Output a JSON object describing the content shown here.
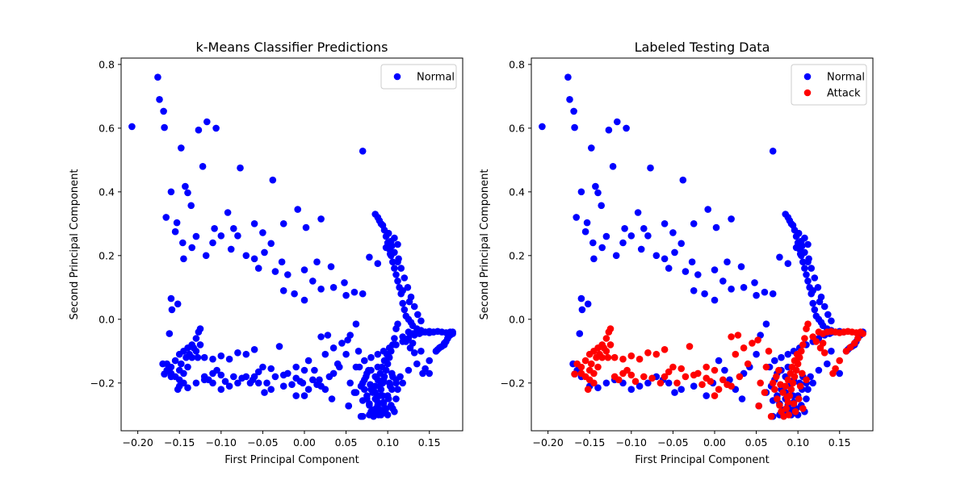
{
  "chart_data": [
    {
      "type": "scatter",
      "title": "k-Means Classifier Predictions",
      "xlabel": "First Principal Component",
      "ylabel": "Second Principal Component",
      "xlim": [
        -0.22,
        0.19
      ],
      "ylim": [
        -0.35,
        0.82
      ],
      "xticks": [
        "−0.20",
        "−0.15",
        "−0.10",
        "−0.05",
        "0.00",
        "0.05",
        "0.10",
        "0.15"
      ],
      "yticks": [
        "−0.2",
        "0.0",
        "0.2",
        "0.4",
        "0.6",
        "0.8"
      ],
      "legend_position": "top-right",
      "series": [
        {
          "name": "Normal",
          "color": "#0000ff",
          "x": [],
          "y": []
        }
      ]
    },
    {
      "type": "scatter",
      "title": "Labeled Testing Data",
      "xlabel": "First Principal Component",
      "ylabel": "Second Principal Component",
      "xlim": [
        -0.22,
        0.19
      ],
      "ylim": [
        -0.35,
        0.82
      ],
      "xticks": [
        "−0.20",
        "−0.15",
        "−0.10",
        "−0.05",
        "0.00",
        "0.05",
        "0.10",
        "0.15"
      ],
      "yticks": [
        "−0.2",
        "0.0",
        "0.2",
        "0.4",
        "0.6",
        "0.8"
      ],
      "legend_position": "top-right",
      "series": [
        {
          "name": "Normal",
          "color": "#0000ff",
          "x": [],
          "y": []
        },
        {
          "name": "Attack",
          "color": "#ff0000",
          "x": [],
          "y": []
        }
      ]
    }
  ],
  "normal_points": [
    [
      -0.207,
      0.605
    ],
    [
      -0.176,
      0.76
    ],
    [
      -0.174,
      0.69
    ],
    [
      -0.169,
      0.653
    ],
    [
      -0.168,
      0.602
    ],
    [
      -0.127,
      0.594
    ],
    [
      -0.117,
      0.62
    ],
    [
      -0.106,
      0.6
    ],
    [
      -0.148,
      0.538
    ],
    [
      -0.122,
      0.48
    ],
    [
      -0.077,
      0.475
    ],
    [
      0.07,
      0.528
    ],
    [
      -0.038,
      0.437
    ],
    [
      -0.143,
      0.417
    ],
    [
      -0.14,
      0.397
    ],
    [
      -0.16,
      0.4
    ],
    [
      -0.136,
      0.357
    ],
    [
      -0.092,
      0.335
    ],
    [
      -0.008,
      0.345
    ],
    [
      0.02,
      0.315
    ],
    [
      0.085,
      0.33
    ],
    [
      -0.166,
      0.32
    ],
    [
      -0.153,
      0.303
    ],
    [
      -0.06,
      0.3
    ],
    [
      -0.025,
      0.3
    ],
    [
      0.002,
      0.288
    ],
    [
      -0.085,
      0.285
    ],
    [
      -0.108,
      0.285
    ],
    [
      -0.155,
      0.275
    ],
    [
      -0.13,
      0.26
    ],
    [
      -0.08,
      0.262
    ],
    [
      -0.1,
      0.262
    ],
    [
      -0.146,
      0.24
    ],
    [
      -0.135,
      0.225
    ],
    [
      -0.11,
      0.24
    ],
    [
      -0.05,
      0.272
    ],
    [
      -0.04,
      0.238
    ],
    [
      -0.088,
      0.22
    ],
    [
      -0.145,
      0.19
    ],
    [
      -0.118,
      0.2
    ],
    [
      -0.07,
      0.2
    ],
    [
      -0.06,
      0.19
    ],
    [
      -0.027,
      0.18
    ],
    [
      0.015,
      0.18
    ],
    [
      0.078,
      0.195
    ],
    [
      0.088,
      0.175
    ],
    [
      -0.048,
      0.21
    ],
    [
      -0.16,
      0.065
    ],
    [
      -0.159,
      0.03
    ],
    [
      -0.152,
      0.048
    ],
    [
      -0.162,
      -0.045
    ],
    [
      -0.168,
      -0.172
    ],
    [
      0.032,
      0.165
    ],
    [
      0.048,
      0.115
    ],
    [
      0.06,
      0.085
    ],
    [
      0.07,
      0.08
    ],
    [
      0.05,
      0.075
    ],
    [
      0.035,
      0.1
    ],
    [
      0.02,
      0.095
    ],
    [
      0.01,
      0.12
    ],
    [
      0.0,
      0.155
    ],
    [
      -0.02,
      0.14
    ],
    [
      -0.035,
      0.15
    ],
    [
      -0.055,
      0.16
    ],
    [
      -0.025,
      0.09
    ],
    [
      -0.012,
      0.08
    ],
    [
      0.0,
      0.06
    ],
    [
      0.062,
      -0.015
    ],
    [
      0.055,
      -0.05
    ],
    [
      0.05,
      -0.11
    ],
    [
      0.042,
      -0.15
    ],
    [
      0.035,
      -0.17
    ],
    [
      0.025,
      -0.22
    ],
    [
      0.018,
      -0.19
    ],
    [
      0.012,
      -0.16
    ],
    [
      0.005,
      -0.13
    ],
    [
      -0.002,
      -0.2
    ],
    [
      -0.01,
      -0.24
    ],
    [
      -0.025,
      -0.21
    ],
    [
      -0.04,
      -0.22
    ],
    [
      -0.048,
      -0.23
    ],
    [
      -0.055,
      -0.2
    ],
    [
      -0.062,
      -0.19
    ],
    [
      -0.07,
      -0.18
    ],
    [
      -0.08,
      -0.2
    ],
    [
      -0.09,
      -0.21
    ],
    [
      -0.1,
      -0.22
    ],
    [
      -0.11,
      -0.2
    ],
    [
      -0.12,
      -0.19
    ],
    [
      -0.13,
      -0.2
    ],
    [
      -0.14,
      -0.215
    ],
    [
      -0.15,
      -0.21
    ],
    [
      -0.16,
      -0.18
    ],
    [
      -0.165,
      -0.16
    ],
    [
      -0.17,
      -0.14
    ],
    [
      0.053,
      -0.272
    ],
    [
      0.033,
      -0.25
    ],
    [
      0.07,
      -0.305
    ],
    [
      0.078,
      -0.3
    ],
    [
      0.085,
      -0.295
    ],
    [
      0.092,
      -0.3
    ],
    [
      0.1,
      -0.3
    ],
    [
      0.108,
      -0.29
    ],
    [
      0.11,
      -0.25
    ],
    [
      0.112,
      -0.22
    ],
    [
      0.115,
      -0.18
    ],
    [
      0.118,
      -0.2
    ],
    [
      0.125,
      -0.16
    ],
    [
      0.135,
      -0.14
    ],
    [
      0.14,
      -0.1
    ],
    [
      0.15,
      -0.17
    ],
    [
      0.158,
      -0.1
    ],
    [
      0.162,
      -0.09
    ],
    [
      0.168,
      -0.08
    ],
    [
      0.172,
      -0.06
    ],
    [
      0.178,
      -0.04
    ],
    [
      0.175,
      -0.05
    ],
    [
      0.17,
      -0.07
    ],
    [
      0.165,
      -0.085
    ],
    [
      0.16,
      -0.095
    ],
    [
      0.155,
      -0.04
    ],
    [
      0.15,
      -0.038
    ],
    [
      0.145,
      -0.04
    ],
    [
      0.14,
      -0.035
    ],
    [
      0.135,
      -0.03
    ],
    [
      0.13,
      -0.02
    ],
    [
      0.128,
      -0.01
    ],
    [
      0.125,
      0.0
    ],
    [
      0.122,
      0.01
    ],
    [
      0.12,
      0.03
    ],
    [
      0.118,
      0.05
    ],
    [
      0.116,
      0.08
    ],
    [
      0.114,
      0.1
    ],
    [
      0.112,
      0.12
    ],
    [
      0.11,
      0.14
    ],
    [
      0.108,
      0.16
    ],
    [
      0.106,
      0.18
    ],
    [
      0.104,
      0.2
    ],
    [
      0.102,
      0.22
    ],
    [
      0.1,
      0.24
    ],
    [
      0.098,
      0.26
    ],
    [
      0.096,
      0.28
    ],
    [
      0.094,
      0.295
    ],
    [
      0.092,
      0.3
    ],
    [
      0.09,
      0.31
    ],
    [
      0.088,
      0.32
    ],
    [
      0.105,
      0.23
    ],
    [
      0.108,
      0.21
    ],
    [
      0.112,
      0.18
    ],
    [
      0.116,
      0.16
    ],
    [
      0.12,
      0.13
    ],
    [
      0.124,
      0.1
    ],
    [
      0.128,
      0.07
    ],
    [
      0.132,
      0.04
    ],
    [
      0.136,
      0.015
    ],
    [
      0.14,
      -0.005
    ],
    [
      0.126,
      0.055
    ],
    [
      0.118,
      0.09
    ],
    [
      0.113,
      0.19
    ],
    [
      0.103,
      0.205
    ],
    [
      0.108,
      0.255
    ],
    [
      0.112,
      0.235
    ],
    [
      0.098,
      0.225
    ],
    [
      0.101,
      0.27
    ],
    [
      0.104,
      0.245
    ],
    [
      0.142,
      -0.04
    ],
    [
      0.138,
      -0.045
    ],
    [
      0.132,
      -0.05
    ],
    [
      0.125,
      -0.06
    ],
    [
      0.118,
      -0.07
    ],
    [
      0.11,
      -0.08
    ],
    [
      0.102,
      -0.09
    ],
    [
      0.095,
      -0.1
    ],
    [
      0.088,
      -0.11
    ],
    [
      0.08,
      -0.12
    ],
    [
      0.072,
      -0.13
    ],
    [
      0.066,
      -0.15
    ],
    [
      0.075,
      -0.17
    ],
    [
      0.085,
      -0.18
    ],
    [
      0.095,
      -0.19
    ],
    [
      0.09,
      -0.21
    ],
    [
      0.08,
      -0.22
    ],
    [
      0.075,
      -0.24
    ],
    [
      0.085,
      -0.25
    ],
    [
      0.095,
      -0.26
    ],
    [
      0.1,
      -0.24
    ],
    [
      0.105,
      -0.22
    ],
    [
      0.098,
      -0.28
    ],
    [
      0.088,
      -0.27
    ],
    [
      0.078,
      -0.265
    ],
    [
      0.07,
      -0.255
    ],
    [
      0.082,
      -0.285
    ],
    [
      0.092,
      -0.285
    ],
    [
      0.104,
      -0.27
    ],
    [
      0.11,
      -0.2
    ],
    [
      0.106,
      -0.18
    ],
    [
      0.098,
      -0.16
    ],
    [
      0.088,
      -0.15
    ],
    [
      0.08,
      -0.16
    ],
    [
      0.072,
      -0.19
    ],
    [
      0.068,
      -0.21
    ],
    [
      0.062,
      -0.23
    ],
    [
      0.085,
      -0.23
    ],
    [
      0.094,
      -0.24
    ],
    [
      0.102,
      -0.2
    ]
  ],
  "attack_points": [
    [
      -0.168,
      -0.172
    ],
    [
      -0.165,
      -0.14
    ],
    [
      -0.16,
      -0.15
    ],
    [
      -0.155,
      -0.13
    ],
    [
      -0.15,
      -0.11
    ],
    [
      -0.145,
      -0.1
    ],
    [
      -0.14,
      -0.09
    ],
    [
      -0.135,
      -0.08
    ],
    [
      -0.13,
      -0.06
    ],
    [
      -0.127,
      -0.04
    ],
    [
      -0.125,
      -0.03
    ],
    [
      -0.15,
      -0.19
    ],
    [
      -0.145,
      -0.17
    ],
    [
      -0.14,
      -0.15
    ],
    [
      -0.135,
      -0.12
    ],
    [
      -0.13,
      -0.1
    ],
    [
      -0.125,
      -0.08
    ],
    [
      -0.16,
      -0.17
    ],
    [
      -0.155,
      -0.18
    ],
    [
      -0.15,
      -0.16
    ],
    [
      -0.148,
      -0.14
    ],
    [
      -0.142,
      -0.12
    ],
    [
      -0.138,
      -0.11
    ],
    [
      -0.133,
      -0.09
    ],
    [
      -0.152,
      -0.22
    ],
    [
      -0.145,
      -0.2
    ],
    [
      -0.128,
      -0.12
    ],
    [
      -0.12,
      -0.12
    ],
    [
      -0.11,
      -0.125
    ],
    [
      -0.1,
      -0.115
    ],
    [
      -0.09,
      -0.125
    ],
    [
      -0.08,
      -0.105
    ],
    [
      -0.07,
      -0.11
    ],
    [
      -0.06,
      -0.095
    ],
    [
      -0.05,
      -0.15
    ],
    [
      -0.04,
      -0.155
    ],
    [
      -0.03,
      -0.085
    ],
    [
      -0.02,
      -0.17
    ],
    [
      -0.01,
      -0.15
    ],
    [
      0.0,
      -0.16
    ],
    [
      0.01,
      -0.19
    ],
    [
      0.02,
      -0.21
    ],
    [
      0.03,
      -0.18
    ],
    [
      0.04,
      -0.14
    ],
    [
      0.02,
      -0.055
    ],
    [
      0.025,
      -0.11
    ],
    [
      0.028,
      -0.05
    ],
    [
      0.035,
      -0.09
    ],
    [
      0.045,
      -0.075
    ],
    [
      0.052,
      -0.065
    ],
    [
      -0.12,
      -0.18
    ],
    [
      -0.115,
      -0.19
    ],
    [
      -0.11,
      -0.17
    ],
    [
      -0.105,
      -0.16
    ],
    [
      -0.1,
      -0.175
    ],
    [
      -0.095,
      -0.195
    ],
    [
      -0.085,
      -0.18
    ],
    [
      -0.075,
      -0.185
    ],
    [
      -0.065,
      -0.2
    ],
    [
      -0.06,
      -0.18
    ],
    [
      -0.055,
      -0.165
    ],
    [
      -0.045,
      -0.2
    ],
    [
      -0.035,
      -0.18
    ],
    [
      -0.025,
      -0.175
    ],
    [
      -0.015,
      -0.205
    ],
    [
      -0.005,
      -0.195
    ],
    [
      0.005,
      -0.22
    ],
    [
      0.015,
      -0.205
    ],
    [
      0.0,
      -0.24
    ],
    [
      -0.01,
      -0.185
    ],
    [
      0.055,
      -0.2
    ],
    [
      0.06,
      -0.23
    ],
    [
      0.062,
      -0.15
    ],
    [
      0.065,
      -0.1
    ],
    [
      0.07,
      -0.2
    ],
    [
      0.072,
      -0.22
    ],
    [
      0.075,
      -0.25
    ],
    [
      0.078,
      -0.27
    ],
    [
      0.08,
      -0.29
    ],
    [
      0.083,
      -0.305
    ],
    [
      0.086,
      -0.28
    ],
    [
      0.088,
      -0.26
    ],
    [
      0.09,
      -0.24
    ],
    [
      0.092,
      -0.22
    ],
    [
      0.094,
      -0.2
    ],
    [
      0.096,
      -0.18
    ],
    [
      0.098,
      -0.16
    ],
    [
      0.1,
      -0.14
    ],
    [
      0.102,
      -0.12
    ],
    [
      0.104,
      -0.1
    ],
    [
      0.106,
      -0.08
    ],
    [
      0.108,
      -0.06
    ],
    [
      0.11,
      -0.03
    ],
    [
      0.112,
      -0.015
    ],
    [
      0.082,
      -0.23
    ],
    [
      0.085,
      -0.21
    ],
    [
      0.088,
      -0.19
    ],
    [
      0.091,
      -0.17
    ],
    [
      0.093,
      -0.15
    ],
    [
      0.096,
      -0.13
    ],
    [
      0.099,
      -0.11
    ],
    [
      0.074,
      -0.18
    ],
    [
      0.077,
      -0.16
    ],
    [
      0.079,
      -0.205
    ],
    [
      0.087,
      -0.245
    ],
    [
      0.095,
      -0.265
    ],
    [
      0.101,
      -0.25
    ],
    [
      0.103,
      -0.21
    ],
    [
      0.105,
      -0.17
    ],
    [
      0.089,
      -0.3
    ],
    [
      0.097,
      -0.29
    ],
    [
      0.106,
      -0.28
    ],
    [
      0.11,
      -0.19
    ],
    [
      0.053,
      -0.272
    ],
    [
      0.068,
      -0.305
    ],
    [
      0.125,
      -0.04
    ],
    [
      0.13,
      -0.045
    ],
    [
      0.135,
      -0.04
    ],
    [
      0.14,
      -0.038
    ],
    [
      0.145,
      -0.04
    ],
    [
      0.15,
      -0.042
    ],
    [
      0.155,
      -0.04
    ],
    [
      0.16,
      -0.038
    ],
    [
      0.165,
      -0.04
    ],
    [
      0.17,
      -0.042
    ],
    [
      0.175,
      -0.04
    ],
    [
      0.178,
      -0.045
    ],
    [
      0.172,
      -0.06
    ],
    [
      0.168,
      -0.075
    ],
    [
      0.163,
      -0.088
    ],
    [
      0.158,
      -0.1
    ],
    [
      0.15,
      -0.13
    ],
    [
      0.145,
      -0.155
    ],
    [
      0.142,
      -0.17
    ],
    [
      0.13,
      -0.075
    ],
    [
      0.118,
      -0.055
    ],
    [
      0.122,
      -0.07
    ],
    [
      0.127,
      -0.09
    ],
    [
      0.132,
      -0.105
    ]
  ]
}
